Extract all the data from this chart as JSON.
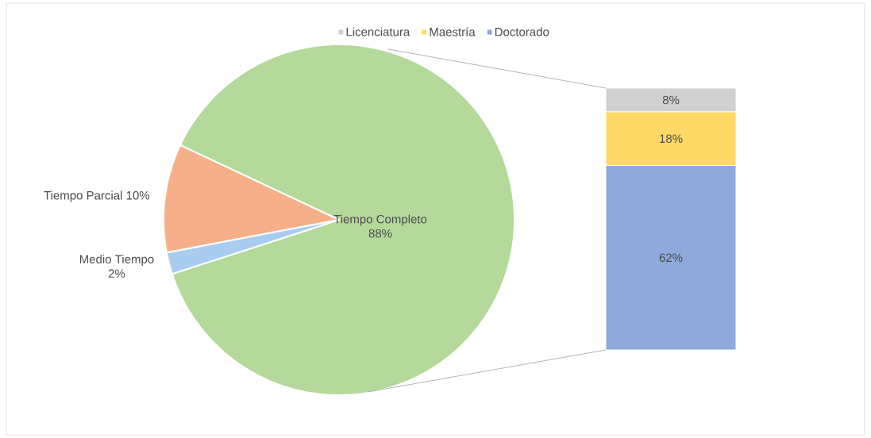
{
  "chart_data": [
    {
      "type": "pie",
      "categories": [
        "Tiempo Completo",
        "Tiempo Parcial",
        "Medio Tiempo"
      ],
      "values": [
        88,
        10,
        2
      ],
      "value_labels": [
        "88%",
        "10%",
        "2%"
      ],
      "colors": [
        "#b4d99b",
        "#f5b08a",
        "#a9cdee"
      ]
    },
    {
      "type": "bar",
      "stacked": true,
      "categories": [
        null
      ],
      "legend": "top",
      "series": [
        {
          "name": "Doctorado",
          "color": "#8eaadc",
          "values": [
            62
          ],
          "value_labels": [
            "62%"
          ]
        },
        {
          "name": "Maestría",
          "color": "#ffd966",
          "values": [
            18
          ],
          "value_labels": [
            "18%"
          ]
        },
        {
          "name": "Licenciatura",
          "color": "#d0d0d0",
          "values": [
            8
          ],
          "value_labels": [
            "8%"
          ]
        }
      ]
    }
  ]
}
